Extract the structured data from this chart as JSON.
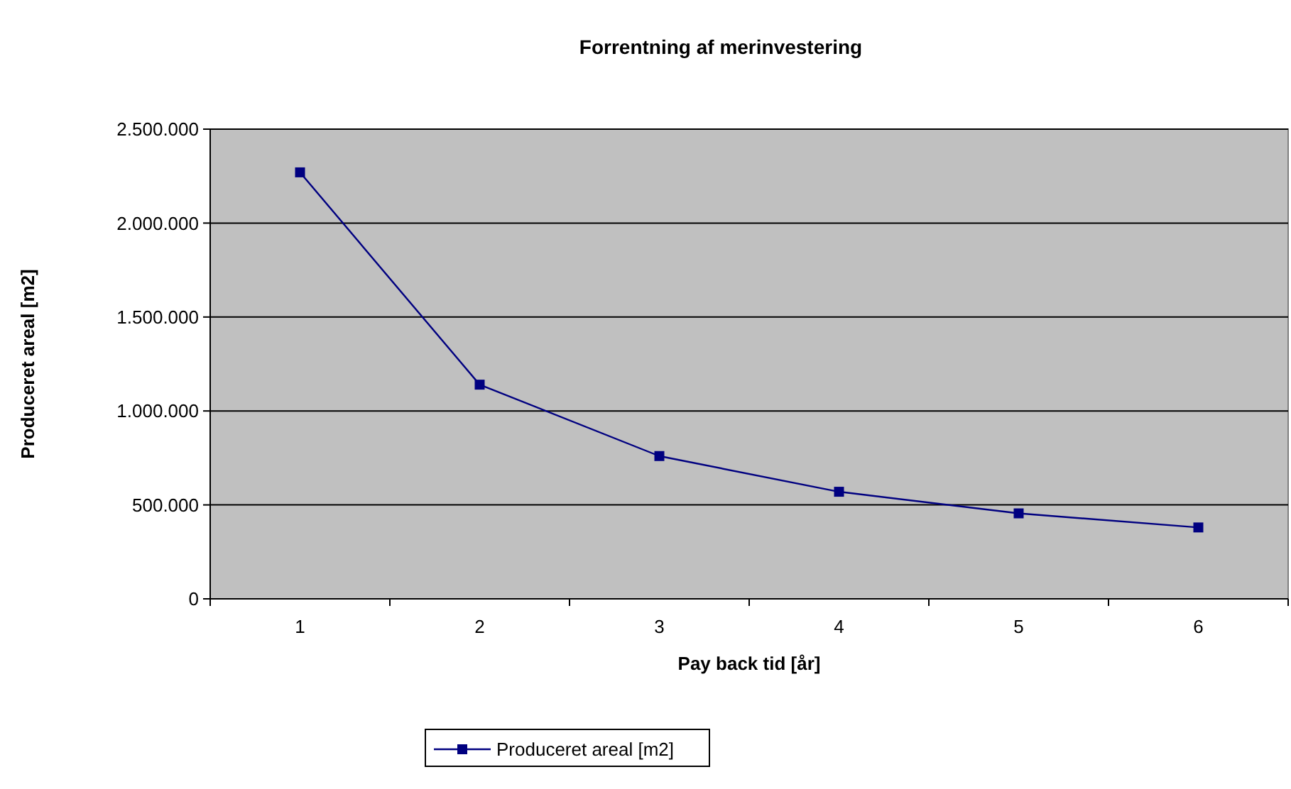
{
  "chart_data": {
    "type": "line",
    "title": "Forrentning af merinvestering",
    "xlabel": "Pay back tid [år]",
    "ylabel": "Produceret areal [m2]",
    "categories": [
      "1",
      "2",
      "3",
      "4",
      "5",
      "6"
    ],
    "series": [
      {
        "name": "Produceret areal [m2]",
        "color": "#000080",
        "values": [
          2270000,
          1140000,
          760000,
          570000,
          455000,
          380000
        ]
      }
    ],
    "ylim": [
      0,
      2500000
    ],
    "yticks": [
      {
        "value": 0,
        "label": "0"
      },
      {
        "value": 500000,
        "label": "500.000"
      },
      {
        "value": 1000000,
        "label": "1.000.000"
      },
      {
        "value": 1500000,
        "label": "1.500.000"
      },
      {
        "value": 2000000,
        "label": "2.000.000"
      },
      {
        "value": 2500000,
        "label": "2.500.000"
      }
    ],
    "grid": "y",
    "legend": "bottom",
    "marker": "square",
    "line_style": "solid"
  }
}
